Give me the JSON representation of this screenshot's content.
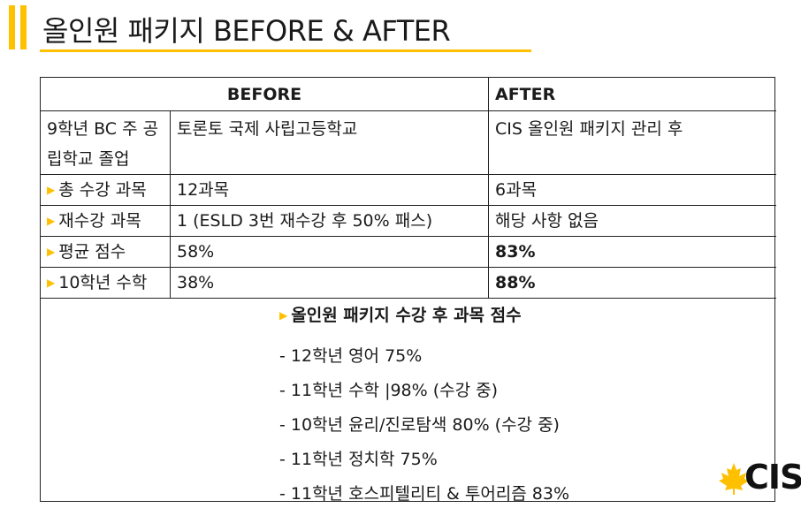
{
  "title": "올인원 패키지 BEFORE & AFTER",
  "colors": {
    "accent": "#ffc000",
    "border": "#222222"
  },
  "table": {
    "headers": {
      "before": "BEFORE",
      "after": "AFTER"
    },
    "profile": {
      "label": "9학년 BC 주 공립학교 졸업",
      "before": "토론토 국제 사립고등학교",
      "after": "CIS 올인원 패키지 관리 후"
    },
    "rows": [
      {
        "label": "총 수강 과목",
        "before": "12과목",
        "after": "6과목"
      },
      {
        "label": "재수강 과목",
        "before": "1 (ESLD 3번 재수강 후 50% 패스)",
        "after": "해당 사항 없음"
      },
      {
        "label": "평균 점수",
        "before": "58%",
        "after": "83%"
      },
      {
        "label": "10학년 수학",
        "before": "38%",
        "after": "88%"
      }
    ]
  },
  "summary": {
    "heading": "올인원 패키지 수강 후 과목 점수",
    "items": [
      "- 12학년 영어 75%",
      "- 11학년 수학 |98% (수강 중)",
      "- 10학년 윤리/진로탐색 80% (수강 중)",
      "- 11학년 정치학 75%",
      "- 11학년 호스피텔리티 & 투어리즘 83%"
    ]
  },
  "logo": {
    "text": "CIS",
    "icon": "maple-leaf-icon"
  }
}
